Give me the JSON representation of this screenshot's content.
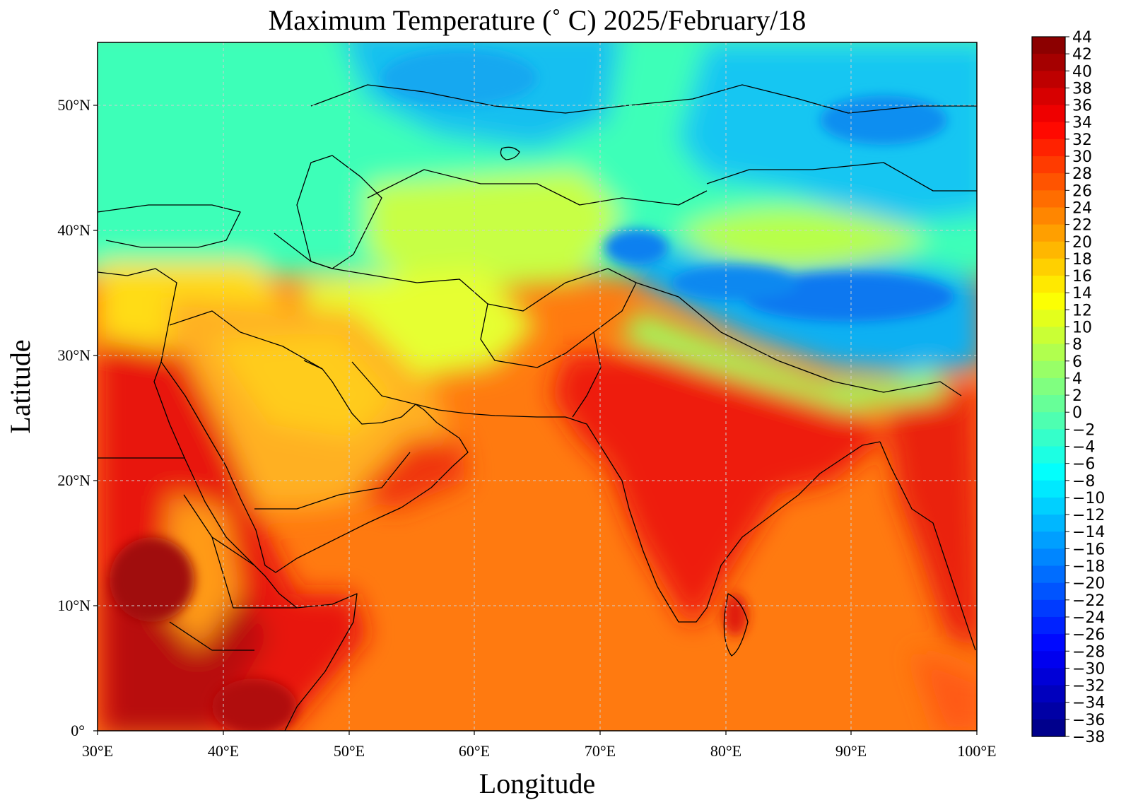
{
  "title": "Maximum Temperature (˚ C)  2025/February/18",
  "xlabel": "Longitude",
  "ylabel": "Latitude",
  "x_ticks": [
    "30°E",
    "40°E",
    "50°E",
    "60°E",
    "70°E",
    "80°E",
    "90°E",
    "100°E"
  ],
  "y_ticks": [
    "0°",
    "10°N",
    "20°N",
    "30°N",
    "40°N",
    "50°N"
  ],
  "map": {
    "projection": "plate carree",
    "lon_range": [
      30,
      100
    ],
    "lat_range": [
      0,
      55
    ],
    "grid": "dashed"
  },
  "colorbar": {
    "range": [
      -38,
      44
    ],
    "step": 2,
    "labels": [
      "44",
      "42",
      "40",
      "38",
      "36",
      "34",
      "32",
      "30",
      "28",
      "26",
      "24",
      "22",
      "20",
      "18",
      "16",
      "14",
      "12",
      "10",
      "8",
      "6",
      "4",
      "2",
      "0",
      "−2",
      "−4",
      "−6",
      "−8",
      "−10",
      "−12",
      "−14",
      "−16",
      "−18",
      "−20",
      "−22",
      "−24",
      "−26",
      "−28",
      "−30",
      "−32",
      "−34",
      "−36",
      "−38"
    ],
    "colormap": "jet"
  },
  "colors": {
    "ocean": "#ff7a10",
    "hot_land": "#e81c10",
    "hottest": "#b00a0a",
    "warm": "#ffd21e",
    "mild": "#b9ff4a",
    "cool": "#26ffcf",
    "cold": "#00b8ff",
    "coldest": "#0a55ee",
    "border": "#000000"
  }
}
